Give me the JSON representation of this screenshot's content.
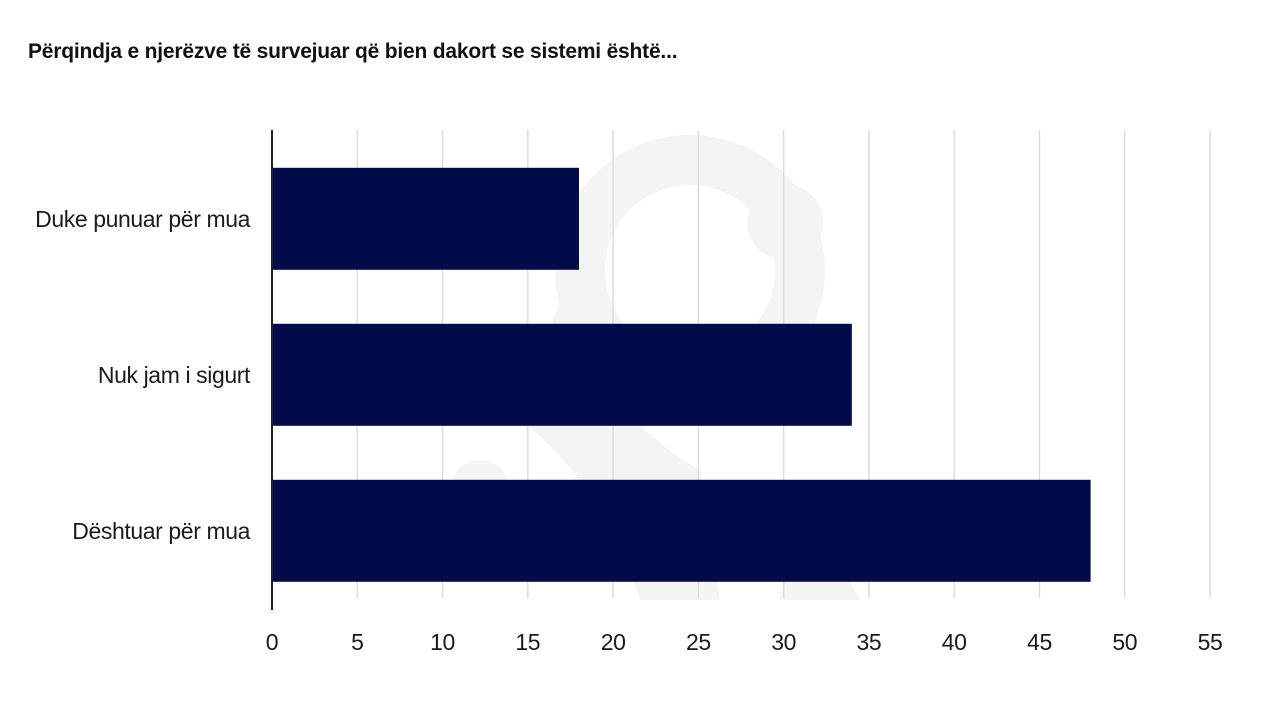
{
  "chart_data": {
    "type": "bar",
    "orientation": "horizontal",
    "title": "Përqindja e njerëzve të survejuar që bien dakort se sistemi është...",
    "categories": [
      "Duke punuar për mua",
      "Nuk jam i sigurt",
      "Dështuar për mua"
    ],
    "values": [
      18,
      34,
      48
    ],
    "xlim": [
      0,
      55
    ],
    "xticks": [
      0,
      5,
      10,
      15,
      20,
      25,
      30,
      35,
      40,
      45,
      50,
      55
    ],
    "xlabel": "",
    "ylabel": "",
    "grid": true,
    "bar_color": "#020b4a",
    "grid_color": "#dddddd",
    "axis_color": "#222222"
  }
}
